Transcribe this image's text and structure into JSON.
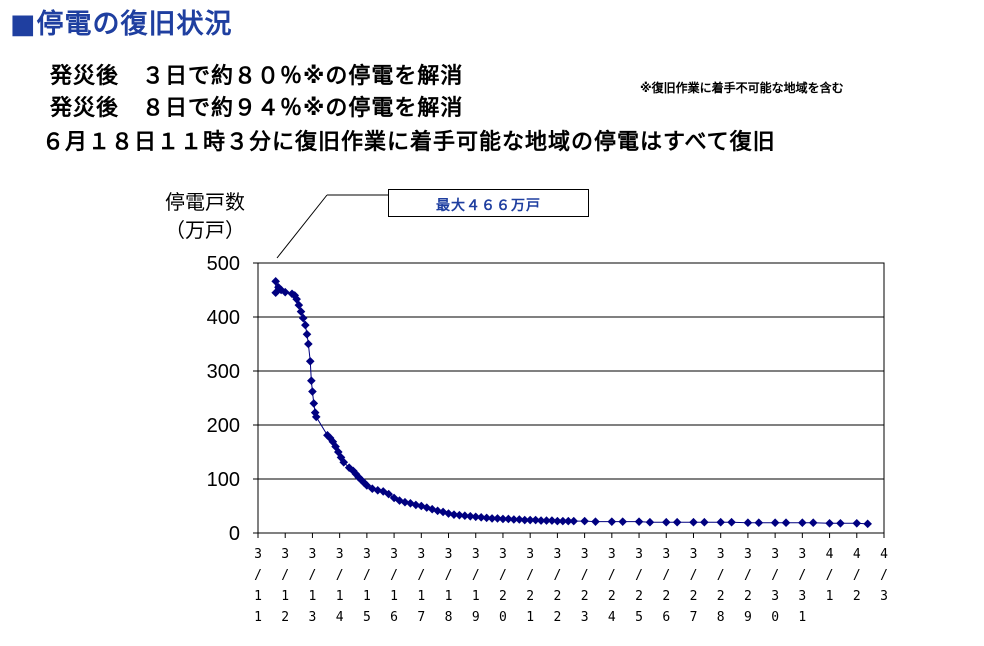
{
  "title": "■停電の復旧状況",
  "lines": [
    "発災後　３日で約８０％※の停電を解消",
    "発災後　８日で約９４％※の停電を解消",
    "６月１８日１１時３分に復旧作業に着手可能な地域の停電はすべて復旧"
  ],
  "note": "※復旧作業に着手不可能な地域を含む",
  "chart_data": {
    "type": "scatter",
    "ylabel": "停電戸数（万戸）",
    "ylabel_lines": [
      "停電戸数",
      "（万戸）"
    ],
    "ylim": [
      0,
      500
    ],
    "yticks": [
      0,
      100,
      200,
      300,
      400,
      500
    ],
    "grid": true,
    "annotation": "最大４６６万戸",
    "xticks": [
      "3/11",
      "3/12",
      "3/13",
      "3/14",
      "3/15",
      "3/16",
      "3/17",
      "3/18",
      "3/19",
      "3/20",
      "3/21",
      "3/22",
      "3/23",
      "3/24",
      "3/25",
      "3/26",
      "3/27",
      "3/28",
      "3/29",
      "3/30",
      "3/31",
      "4/1",
      "4/2",
      "4/3"
    ],
    "x_day_range": [
      0,
      23
    ],
    "points": [
      [
        0.65,
        445
      ],
      [
        0.65,
        466
      ],
      [
        0.75,
        455
      ],
      [
        0.85,
        450
      ],
      [
        1.0,
        446
      ],
      [
        1.25,
        443
      ],
      [
        1.35,
        440
      ],
      [
        1.42,
        433
      ],
      [
        1.5,
        422
      ],
      [
        1.58,
        410
      ],
      [
        1.66,
        398
      ],
      [
        1.74,
        385
      ],
      [
        1.8,
        368
      ],
      [
        1.85,
        350
      ],
      [
        1.92,
        318
      ],
      [
        1.96,
        282
      ],
      [
        2.0,
        262
      ],
      [
        2.05,
        240
      ],
      [
        2.1,
        223
      ],
      [
        2.14,
        215
      ],
      [
        2.55,
        181
      ],
      [
        2.65,
        176
      ],
      [
        2.75,
        169
      ],
      [
        2.85,
        160
      ],
      [
        2.95,
        150
      ],
      [
        3.05,
        140
      ],
      [
        3.15,
        131
      ],
      [
        3.35,
        121
      ],
      [
        3.5,
        115
      ],
      [
        3.6,
        109
      ],
      [
        3.7,
        103
      ],
      [
        3.8,
        98
      ],
      [
        3.9,
        93
      ],
      [
        4.0,
        88
      ],
      [
        4.2,
        82
      ],
      [
        4.4,
        79
      ],
      [
        4.6,
        77
      ],
      [
        4.8,
        72
      ],
      [
        5.0,
        65
      ],
      [
        5.2,
        60
      ],
      [
        5.4,
        57
      ],
      [
        5.6,
        55
      ],
      [
        5.8,
        52
      ],
      [
        6.0,
        50
      ],
      [
        6.2,
        47
      ],
      [
        6.4,
        44
      ],
      [
        6.6,
        41
      ],
      [
        6.8,
        39
      ],
      [
        7.0,
        36
      ],
      [
        7.2,
        34
      ],
      [
        7.4,
        33
      ],
      [
        7.6,
        32
      ],
      [
        7.8,
        31
      ],
      [
        8.0,
        30
      ],
      [
        8.2,
        29
      ],
      [
        8.4,
        28
      ],
      [
        8.6,
        27
      ],
      [
        8.8,
        27
      ],
      [
        9.0,
        26
      ],
      [
        9.2,
        26
      ],
      [
        9.4,
        25
      ],
      [
        9.6,
        25
      ],
      [
        9.8,
        24
      ],
      [
        10.0,
        24
      ],
      [
        10.2,
        24
      ],
      [
        10.4,
        23
      ],
      [
        10.6,
        23
      ],
      [
        10.8,
        23
      ],
      [
        11.0,
        22
      ],
      [
        11.2,
        22
      ],
      [
        11.4,
        22
      ],
      [
        11.6,
        22
      ],
      [
        12.0,
        22
      ],
      [
        12.4,
        21
      ],
      [
        13.0,
        21
      ],
      [
        13.4,
        21
      ],
      [
        14.0,
        21
      ],
      [
        14.4,
        20
      ],
      [
        15.0,
        20
      ],
      [
        15.4,
        20
      ],
      [
        16.0,
        20
      ],
      [
        16.4,
        20
      ],
      [
        17.0,
        20
      ],
      [
        17.4,
        20
      ],
      [
        18.0,
        19
      ],
      [
        18.4,
        19
      ],
      [
        19.0,
        19
      ],
      [
        19.4,
        19
      ],
      [
        20.0,
        19
      ],
      [
        20.4,
        19
      ],
      [
        21.0,
        18
      ],
      [
        21.4,
        18
      ],
      [
        22.0,
        18
      ],
      [
        22.4,
        17
      ]
    ]
  }
}
